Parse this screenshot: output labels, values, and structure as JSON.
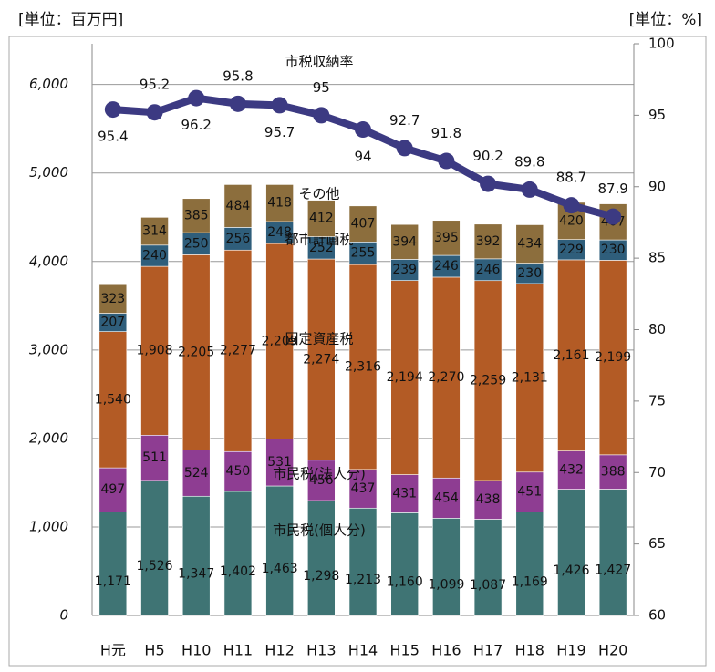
{
  "chart_data": {
    "type": "bar",
    "stacked": true,
    "y_unit_label": "[単位：百万円]",
    "y2_unit_label": "[単位：%]",
    "categories": [
      "H元",
      "H5",
      "H10",
      "H11",
      "H12",
      "H13",
      "H14",
      "H15",
      "H16",
      "H17",
      "H18",
      "H19",
      "H20"
    ],
    "series": [
      {
        "name": "市民税(個人分)",
        "color": "#3f7474",
        "values": [
          1171,
          1526,
          1347,
          1402,
          1463,
          1298,
          1213,
          1160,
          1099,
          1087,
          1169,
          1426,
          1427
        ],
        "value_labels": [
          "1,171",
          "1,526",
          "1,347",
          "1,402",
          "1,463",
          "1,298",
          "1,213",
          "1,160",
          "1,099",
          "1,087",
          "1,169",
          "1,426",
          "1,427"
        ]
      },
      {
        "name": "市民税(法人分)",
        "color": "#8e3d92",
        "values": [
          497,
          511,
          524,
          450,
          531,
          456,
          437,
          431,
          454,
          438,
          451,
          432,
          388
        ]
      },
      {
        "name": "固定資産税",
        "color": "#b35b25",
        "values": [
          1540,
          1908,
          2205,
          2277,
          2209,
          2274,
          2316,
          2194,
          2270,
          2259,
          2131,
          2161,
          2199
        ],
        "value_labels": [
          "1,540",
          "1,908",
          "2,205",
          "2,277",
          "2,209",
          "2,274",
          "2,316",
          "2,194",
          "2,270",
          "2,259",
          "2,131",
          "2,161",
          "2,199"
        ]
      },
      {
        "name": "都市計画税",
        "color": "#2f5e7b",
        "values": [
          207,
          240,
          250,
          256,
          248,
          252,
          255,
          239,
          246,
          246,
          230,
          229,
          230
        ]
      },
      {
        "name": "その他",
        "color": "#8c6e3d",
        "values": [
          323,
          314,
          385,
          484,
          418,
          412,
          407,
          394,
          395,
          392,
          434,
          420,
          407
        ]
      },
      {
        "name": "市税収納率",
        "type": "line",
        "axis": "y2",
        "color": "#3c3a82",
        "values": [
          95.4,
          95.2,
          96.2,
          95.8,
          95.7,
          95,
          94,
          92.7,
          91.8,
          90.2,
          89.8,
          88.7,
          87.9
        ]
      }
    ],
    "ylim": [
      0,
      6460
    ],
    "yticks": [
      0,
      {
        "value": 1000,
        "label": "1,000"
      },
      {
        "value": 2000,
        "label": "2,000"
      },
      {
        "value": 3000,
        "label": "3,000"
      },
      {
        "value": 4000,
        "label": "4,000"
      },
      {
        "value": 5000,
        "label": "5,000"
      },
      {
        "value": 6000,
        "label": "6,000"
      }
    ],
    "y2lim": [
      60,
      100
    ],
    "y2ticks": [
      60,
      65,
      70,
      75,
      80,
      85,
      90,
      95,
      100
    ],
    "grid": true
  }
}
